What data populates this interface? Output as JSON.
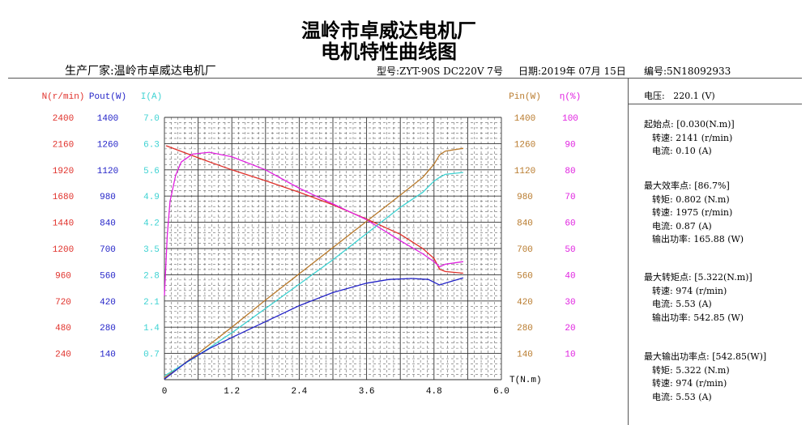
{
  "title": {
    "company": "温岭市卓威达电机厂",
    "subtitle": "电机特性曲线图"
  },
  "header": {
    "manufacturer": "生产厂家:温岭市卓威达电机厂",
    "model": "型号:ZYT-90S DC220V 7号",
    "date": "日期:2019年 07月 15日",
    "serial": "编号:5N18092933"
  },
  "panel": {
    "voltage": "电压:   220.1 (V)",
    "start": {
      "title": "起始点: [0.030(N.m)]",
      "lines": [
        "转速: 2141 (r/min)",
        "电流: 0.10 (A)"
      ]
    },
    "max_eff": {
      "title": "最大效率点: [86.7%]",
      "lines": [
        "转矩: 0.802 (N.m)",
        "转速: 1975 (r/min)",
        "电流: 0.87 (A)",
        "输出功率: 165.88 (W)"
      ]
    },
    "max_torque": {
      "title": "最大转矩点: [5.322(N.m)]",
      "lines": [
        "转速: 974 (r/min)",
        "电流: 5.53 (A)",
        "输出功率: 542.85 (W)"
      ]
    },
    "max_power": {
      "title": "最大输出功率点: [542.85(W)]",
      "lines": [
        "转矩: 5.322 (N.m)",
        "转速: 974 (r/min)",
        "电流: 5.53 (A)"
      ]
    }
  },
  "chart_data": {
    "type": "line",
    "title": "电机特性曲线图",
    "xlabel": "T(N.m)",
    "xlim": [
      0,
      6.0
    ],
    "xticks": [
      "0",
      "1.2",
      "2.4",
      "3.6",
      "4.8",
      "6.0"
    ],
    "grid": true,
    "axes": [
      {
        "key": "N",
        "label": "N(r/min)",
        "side": "left",
        "color": "#e0302a",
        "max": 2400,
        "ticks": [
          "2400",
          "2160",
          "1920",
          "1680",
          "1440",
          "1200",
          "960",
          "720",
          "480",
          "240"
        ]
      },
      {
        "key": "Pout",
        "label": "Pout(W)",
        "side": "left",
        "color": "#2323c8",
        "max": 1400,
        "ticks": [
          "1400",
          "1260",
          "1120",
          "980",
          "840",
          "700",
          "560",
          "420",
          "280",
          "140"
        ]
      },
      {
        "key": "I",
        "label": "I(A)",
        "side": "left",
        "color": "#3cd2d2",
        "max": 7.0,
        "ticks": [
          "7.0",
          "6.3",
          "5.6",
          "4.9",
          "4.2",
          "3.5",
          "2.8",
          "2.1",
          "1.4",
          "0.7"
        ]
      },
      {
        "key": "Pin",
        "label": "Pin(W)",
        "side": "right",
        "color": "#b87a2c",
        "max": 1400,
        "ticks": [
          "1400",
          "1260",
          "1120",
          "980",
          "840",
          "700",
          "560",
          "420",
          "280",
          "140"
        ]
      },
      {
        "key": "eta",
        "label": "η(%)",
        "side": "right",
        "color": "#e020e0",
        "max": 100,
        "ticks": [
          "100",
          "90",
          "80",
          "70",
          "60",
          "50",
          "40",
          "30",
          "20",
          "10"
        ]
      }
    ],
    "series": [
      {
        "name": "N",
        "axis": "N",
        "color": "#e0302a",
        "x": [
          0.03,
          0.6,
          1.2,
          1.8,
          2.4,
          3.0,
          3.6,
          4.2,
          4.6,
          4.8,
          4.9,
          5.0,
          5.32
        ],
        "y": [
          2141,
          2030,
          1920,
          1820,
          1715,
          1600,
          1470,
          1330,
          1200,
          1110,
          1010,
          990,
          974
        ]
      },
      {
        "name": "eta",
        "axis": "eta",
        "color": "#e020e0",
        "x": [
          0.0,
          0.05,
          0.1,
          0.2,
          0.3,
          0.5,
          0.8,
          1.2,
          1.8,
          2.4,
          3.0,
          3.6,
          4.2,
          4.6,
          4.8,
          4.9,
          5.0,
          5.32
        ],
        "y": [
          32,
          55,
          68,
          78,
          83,
          86,
          86.7,
          85,
          80,
          73,
          67,
          61,
          53,
          48,
          45,
          43,
          44,
          45
        ]
      },
      {
        "name": "Pin",
        "axis": "Pin",
        "color": "#b87a2c",
        "x": [
          0,
          0.6,
          1.2,
          1.8,
          2.4,
          3.0,
          3.6,
          4.2,
          4.6,
          4.8,
          4.9,
          5.0,
          5.32
        ],
        "y": [
          10,
          140,
          280,
          425,
          565,
          705,
          845,
          985,
          1080,
          1150,
          1200,
          1220,
          1235
        ]
      },
      {
        "name": "I",
        "axis": "I",
        "color": "#3cd2d2",
        "x": [
          0,
          0.6,
          1.2,
          1.8,
          2.4,
          3.0,
          3.6,
          4.2,
          4.6,
          4.8,
          4.9,
          5.0,
          5.32
        ],
        "y": [
          0.1,
          0.65,
          1.25,
          1.9,
          2.55,
          3.2,
          3.9,
          4.6,
          5.0,
          5.3,
          5.4,
          5.48,
          5.53
        ]
      },
      {
        "name": "Pout",
        "axis": "Pout",
        "color": "#2323c8",
        "x": [
          0,
          0.4,
          0.8,
          1.2,
          1.8,
          2.4,
          3.0,
          3.6,
          4.0,
          4.4,
          4.7,
          4.8,
          4.9,
          5.0,
          5.32
        ],
        "y": [
          3,
          95,
          166,
          225,
          310,
          395,
          465,
          515,
          535,
          540,
          535,
          520,
          505,
          515,
          543
        ]
      }
    ]
  }
}
